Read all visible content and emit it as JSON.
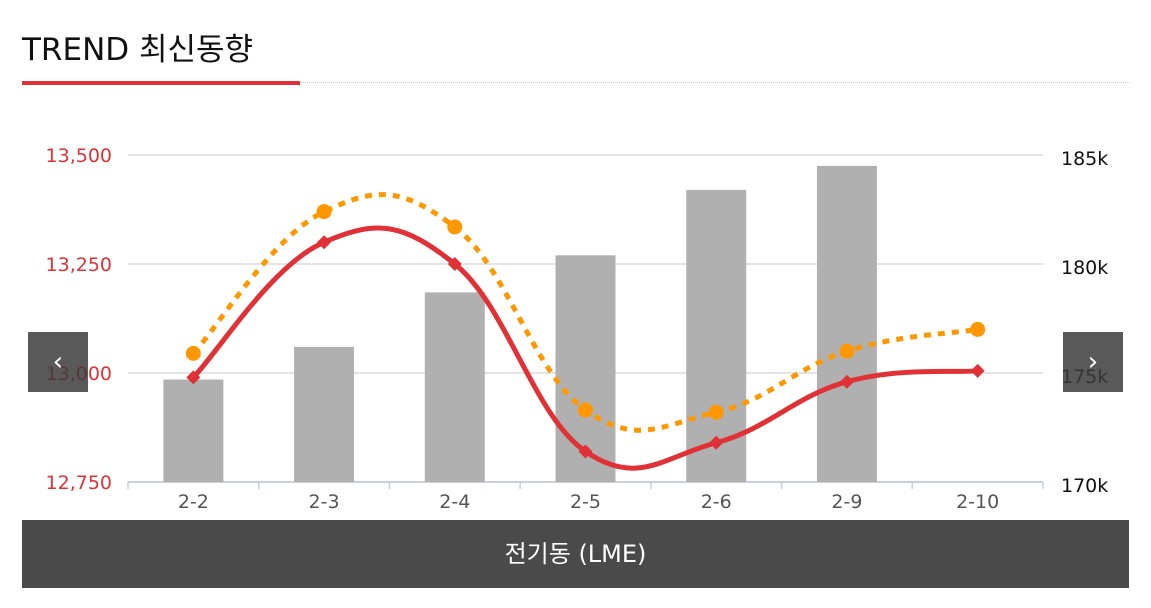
{
  "header": {
    "title": "TREND 최신동향"
  },
  "nav": {
    "prev_symbol": "‹",
    "next_symbol": "›"
  },
  "footer": {
    "label": "전기동 (LME)"
  },
  "colors": {
    "accent": "#e03236",
    "line1": "#e03236",
    "line2": "#ff9800",
    "bar": "#b0b0b0",
    "footer_bg": "#4a4a4a"
  },
  "chart_data": {
    "type": "bar",
    "categories": [
      "2-2",
      "2-3",
      "2-4",
      "2-5",
      "2-6",
      "2-9",
      "2-10"
    ],
    "y_left": {
      "ticks": [
        "13,500",
        "13,250",
        "13,000",
        "12,750"
      ],
      "range": [
        12750,
        13500
      ]
    },
    "y_right": {
      "ticks": [
        "185k",
        "180k",
        "175k",
        "170k"
      ],
      "range": [
        170000,
        185000
      ]
    },
    "grid": true,
    "series": [
      {
        "type": "bar",
        "axis": "right",
        "values": [
          174700,
          176200,
          178700,
          180400,
          183400,
          184500,
          null
        ]
      },
      {
        "type": "line",
        "axis": "left",
        "style": "solid",
        "marker": "diamond",
        "values": [
          12990,
          13300,
          13250,
          12820,
          12840,
          12980,
          13005
        ]
      },
      {
        "type": "line",
        "axis": "left",
        "style": "dotted",
        "marker": "circle",
        "values": [
          13045,
          13370,
          13335,
          12915,
          12910,
          13050,
          13100
        ]
      }
    ]
  }
}
